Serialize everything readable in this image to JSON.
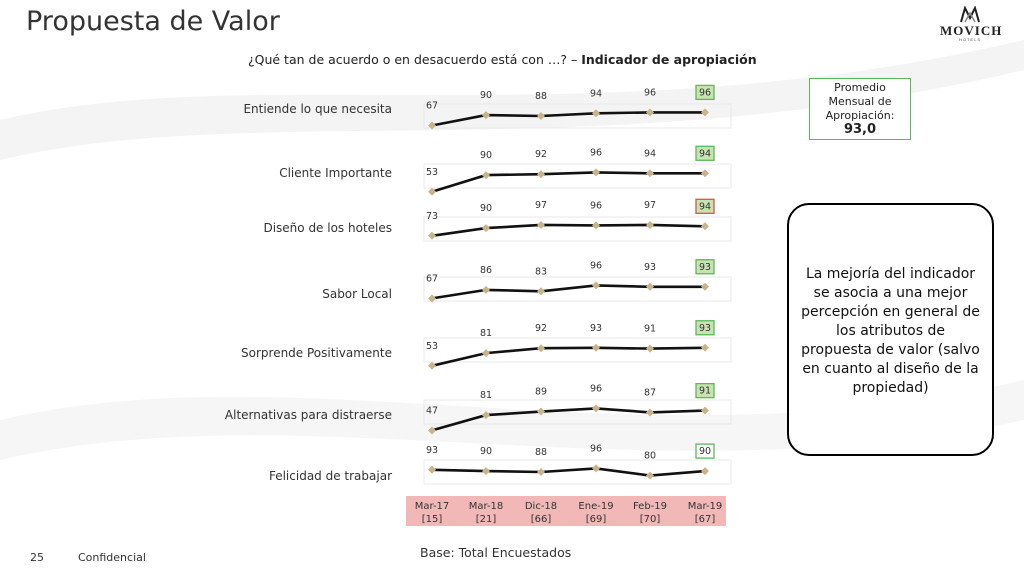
{
  "slide": {
    "title": "Propuesta de Valor",
    "question_prefix": "¿Qué tan de acuerdo o en desacuerdo está con …? – ",
    "question_bold": "Indicador de apropiación",
    "logo_text": "MOVICH",
    "logo_sub": "HOTELS",
    "base": "Base: Total Encuestados",
    "page_number": "25",
    "confidential": "Confidencial"
  },
  "average_box": {
    "line1": "Promedio",
    "line2": "Mensual de",
    "line3": "Apropiación:",
    "value": "93,0"
  },
  "note": "La mejoría del indicador se asocia a una mejor percepción en general de los atributos de propuesta de valor (salvo en cuanto al diseño de la propiedad)",
  "colors": {
    "line": "#111111",
    "marker": "#c8b48a",
    "highlight_green": "#c9e3b0",
    "highlight_green_border": "#5cb85c",
    "highlight_red_border": "#d9534f",
    "axis_bg": "#f2b8b8"
  },
  "chart_data": {
    "type": "line",
    "categories": [
      "Mar-17",
      "Mar-18",
      "Dic-18",
      "Ene-19",
      "Feb-19",
      "Mar-19"
    ],
    "bases": [
      "[15]",
      "[21]",
      "[66]",
      "[69]",
      "[70]",
      "[67]"
    ],
    "ylim": [
      0,
      100
    ],
    "series": [
      {
        "name": "Entiende lo que necesita",
        "values": [
          67,
          90,
          88,
          94,
          96,
          96
        ],
        "last_highlight": "green"
      },
      {
        "name": "Cliente Importante",
        "values": [
          53,
          90,
          92,
          96,
          94,
          94
        ],
        "last_highlight": "green"
      },
      {
        "name": "Diseño de los hoteles",
        "values": [
          73,
          90,
          97,
          96,
          97,
          94
        ],
        "last_highlight": "red"
      },
      {
        "name": "Sabor Local",
        "values": [
          67,
          86,
          83,
          96,
          93,
          93
        ],
        "last_highlight": "green"
      },
      {
        "name": "Sorprende Positivamente",
        "values": [
          53,
          81,
          92,
          93,
          91,
          93
        ],
        "last_highlight": "green"
      },
      {
        "name": "Alternativas para distraerse",
        "values": [
          47,
          81,
          89,
          96,
          87,
          91
        ],
        "last_highlight": "green"
      },
      {
        "name": "Felicidad de trabajar",
        "values": [
          93,
          90,
          88,
          96,
          80,
          90
        ],
        "last_highlight": "outline-green"
      }
    ]
  }
}
